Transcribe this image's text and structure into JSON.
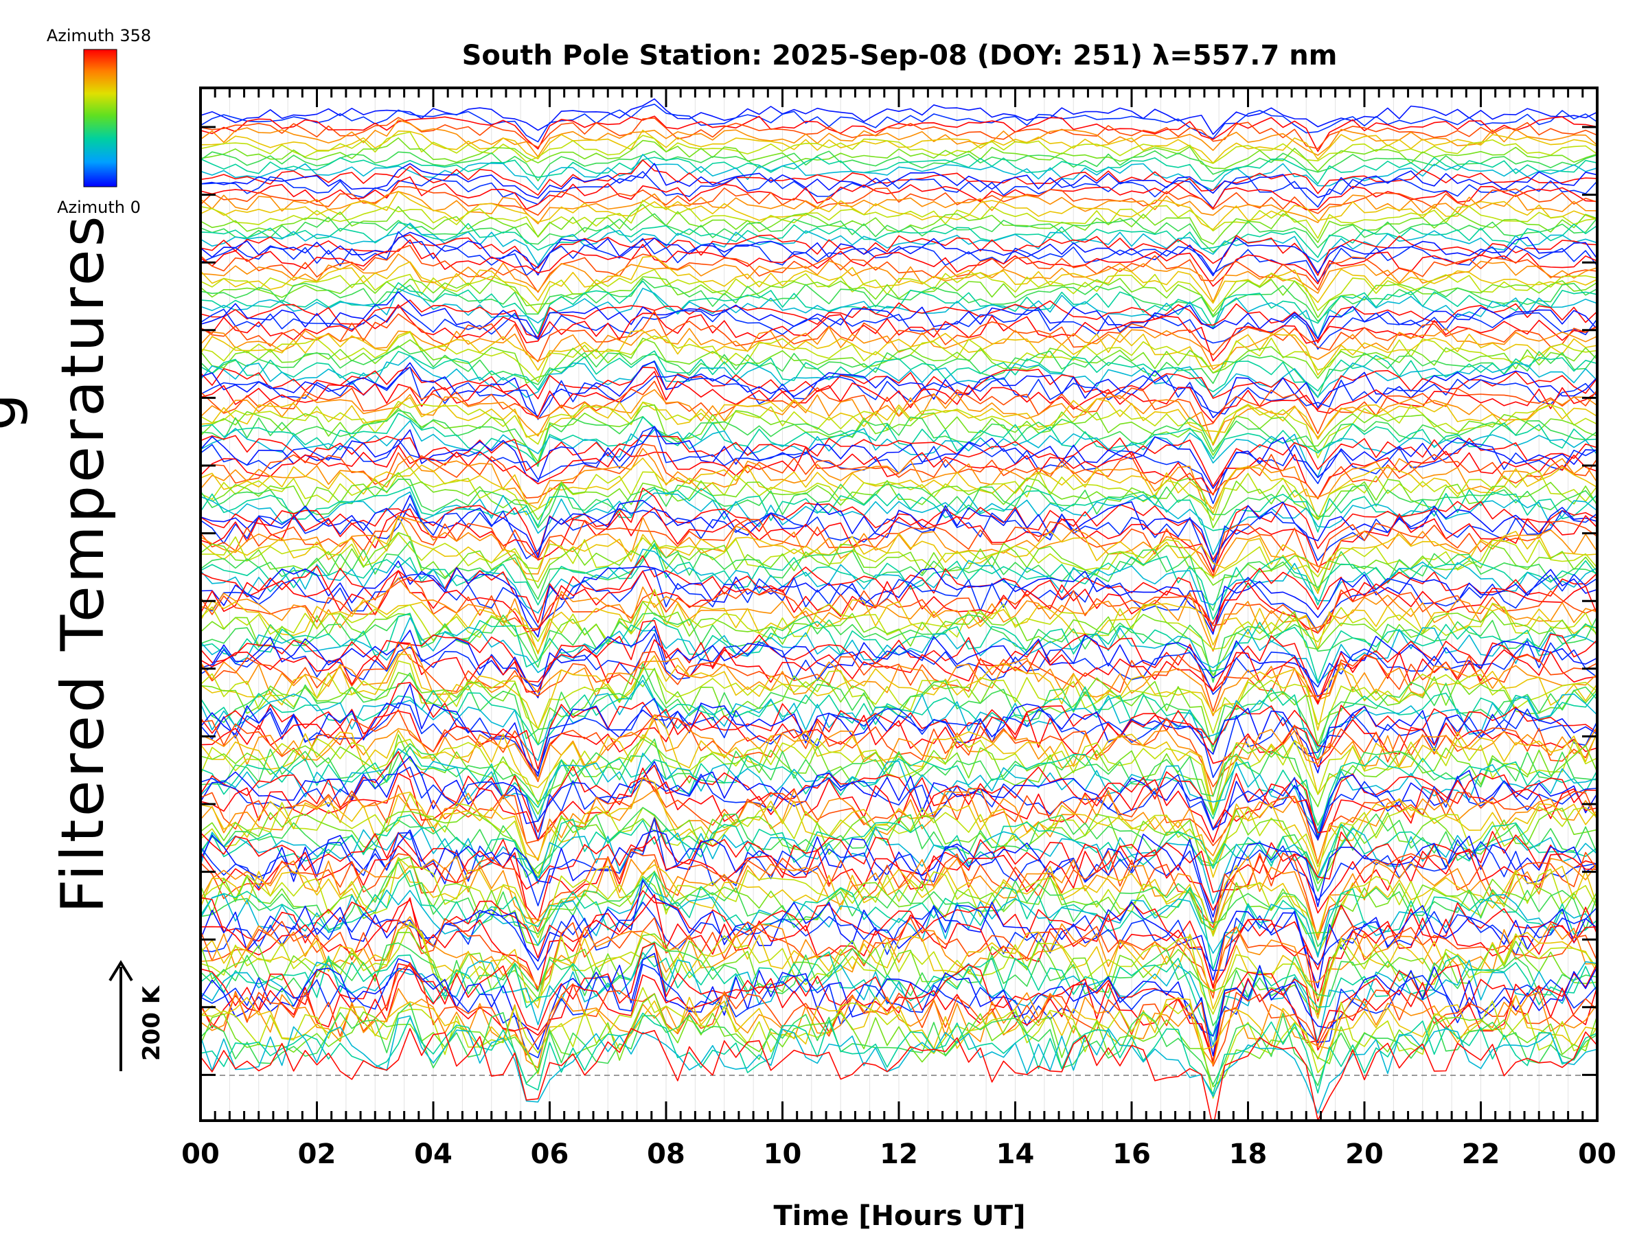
{
  "chart_data": {
    "type": "line",
    "title": "South Pole Station: 2025-Sep-08 (DOY: 251) λ=557.7 nm",
    "xlabel": "Time [Hours UT]",
    "ylabel": "Filtered Temperatures",
    "ylabel_partial": "g",
    "xlim": [
      0,
      24
    ],
    "x_ticks": [
      "00",
      "02",
      "04",
      "06",
      "08",
      "10",
      "12",
      "14",
      "16",
      "18",
      "20",
      "22",
      "00"
    ],
    "scale_bar": {
      "label": "200 K",
      "value_K": 200
    },
    "colorbar": {
      "top_label": "Azimuth 358",
      "bottom_label": "Azimuth 0",
      "colors": [
        "#0000ff",
        "#00a0ff",
        "#00d0a0",
        "#60e020",
        "#e0e000",
        "#ff8000",
        "#ff0000"
      ]
    },
    "series_description": "Stacked time series of filtered temperatures, one per azimuth (0 to 358 deg), colour-coded by azimuth, offset vertically in groups",
    "stack_groups": 14,
    "series_per_group": 12,
    "baseline_dashed": true,
    "common_features": [
      {
        "x_hours": 3.5,
        "kind": "peak"
      },
      {
        "x_hours": 5.75,
        "kind": "dip"
      },
      {
        "x_hours": 7.7,
        "kind": "peak"
      },
      {
        "x_hours": 17.4,
        "kind": "dip"
      },
      {
        "x_hours": 19.2,
        "kind": "dip"
      }
    ]
  }
}
